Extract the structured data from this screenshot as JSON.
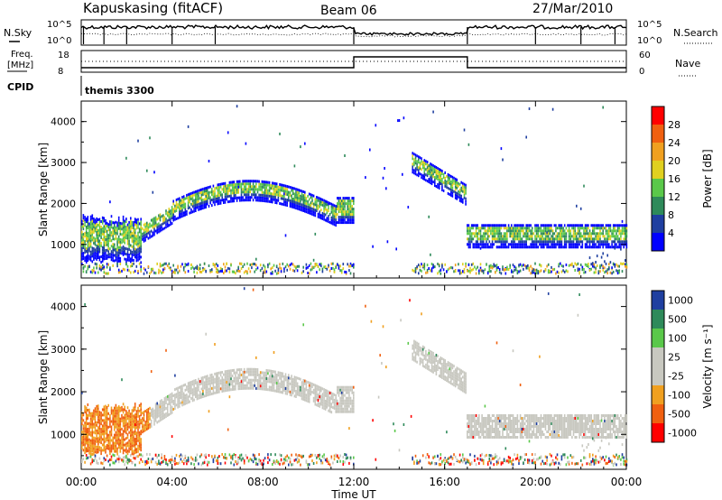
{
  "header": {
    "station": "Kapuskasing (fitACF)",
    "beam": "Beam 06",
    "date": "27/Mar/2010"
  },
  "summary": {
    "nsky_label": "N.Sky",
    "nsearch_label": "N.Search",
    "freq_label_top": "Freq.",
    "freq_label_bottom": "[MHz]",
    "nave_label": "Nave",
    "cpid_label": "CPID",
    "cpid_value": "themis 3300",
    "nsky_ticks": [
      "10^5",
      "10^0"
    ],
    "nsearch_ticks": [
      "10^5",
      "10^0"
    ],
    "freq_ticks": [
      "18",
      "8"
    ],
    "nave_ticks": [
      "60",
      "0"
    ]
  },
  "chart_data": [
    {
      "type": "heatmap",
      "name": "power",
      "ylabel": "Slant Range [km]",
      "ylim": [
        180,
        4500
      ],
      "yticks": [
        "1000",
        "2000",
        "3000",
        "4000"
      ],
      "x_ticks": [
        "00:00",
        "04:00",
        "08:00",
        "12:00",
        "16:00",
        "20:00",
        "00:00"
      ],
      "colorbar_label": "Power [dB]",
      "colorbar_ticks": [
        "4",
        "8",
        "12",
        "16",
        "20",
        "24",
        "28"
      ],
      "colors": [
        "#0000ff",
        "#1f3fa0",
        "#2e8a5a",
        "#5ac84a",
        "#e0d020",
        "#f0a020",
        "#f06010",
        "#ff0000"
      ]
    },
    {
      "type": "heatmap",
      "name": "velocity",
      "ylabel": "Slant Range [km]",
      "ylim": [
        180,
        4500
      ],
      "yticks": [
        "1000",
        "2000",
        "3000",
        "4000"
      ],
      "x_ticks": [
        "00:00",
        "04:00",
        "08:00",
        "12:00",
        "16:00",
        "20:00",
        "00:00"
      ],
      "xlabel": "Time UT",
      "colorbar_label": "Velocity [m s⁻¹]",
      "colorbar_ticks": [
        "1000",
        "500",
        "100",
        "25",
        "-25",
        "-100",
        "-500",
        "-1000"
      ],
      "colors": [
        "#1f3fa0",
        "#2e8a5a",
        "#5ac84a",
        "#c8c8c0",
        "#c8c8c0",
        "#f0a020",
        "#f06010",
        "#ff0000"
      ]
    }
  ]
}
